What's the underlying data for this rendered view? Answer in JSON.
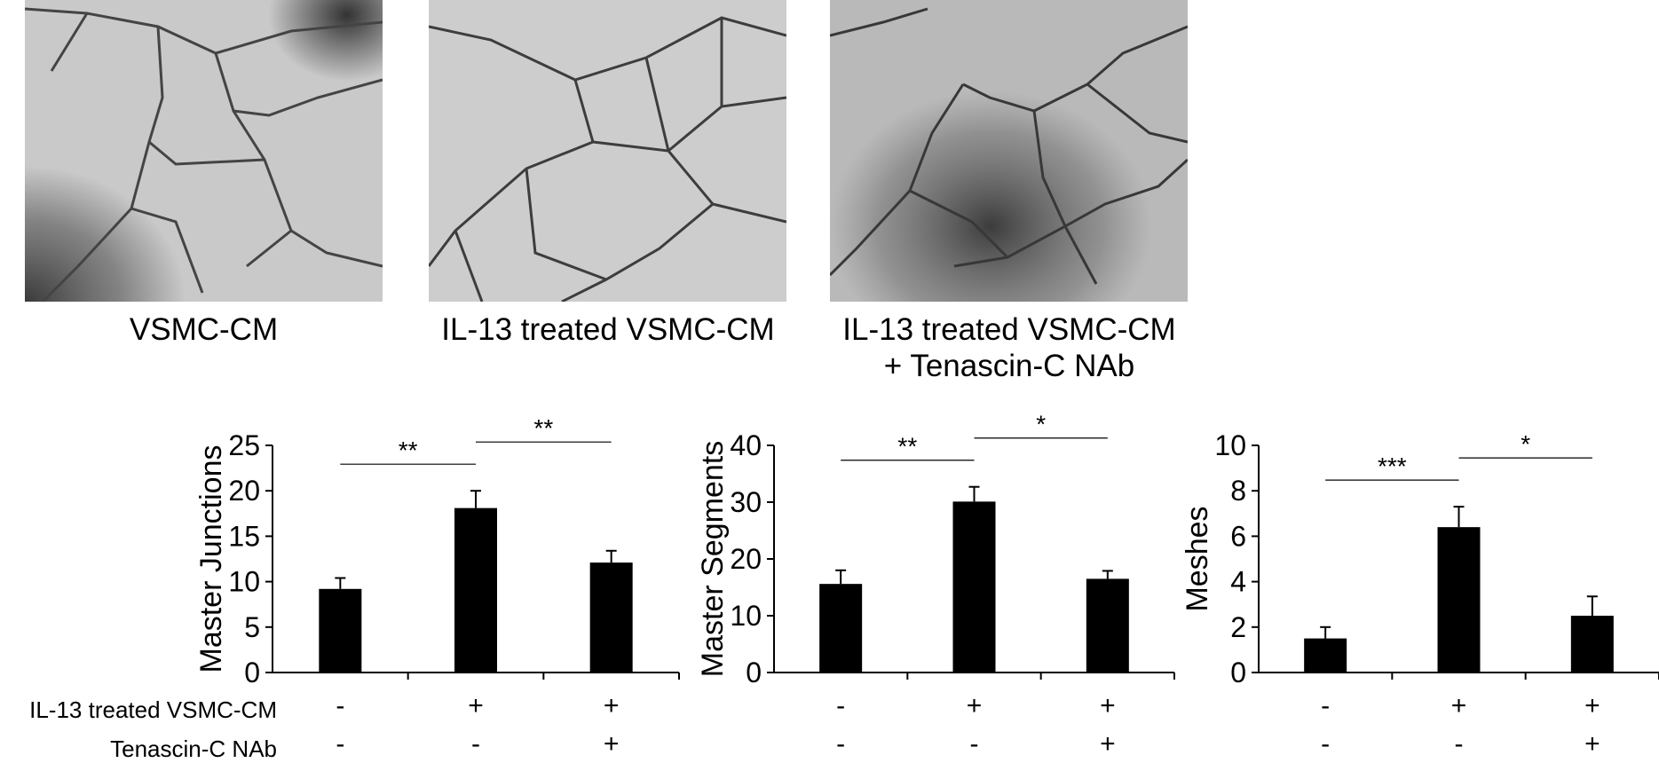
{
  "micrographs": [
    {
      "caption_lines": [
        "VSMC-CM"
      ]
    },
    {
      "caption_lines": [
        "IL-13 treated VSMC-CM"
      ]
    },
    {
      "caption_lines": [
        "IL-13 treated VSMC-CM",
        "+ Tenascin-C NAb"
      ]
    }
  ],
  "conditions": {
    "row1_label": "IL-13 treated VSMC-CM",
    "row2_label": "Tenascin-C NAb",
    "row1_signs": [
      "-",
      "+",
      "+"
    ],
    "row2_signs": [
      "-",
      "-",
      "+"
    ]
  },
  "colors": {
    "bar": "#000000",
    "axis": "#000000",
    "micrograph_bg": "#c8c8c8",
    "vessel": "#3a3a3a"
  },
  "chart_data": [
    {
      "type": "bar",
      "ylabel": "Master Junctions",
      "ylim": [
        0,
        25
      ],
      "yticks": [
        0,
        5,
        10,
        15,
        20,
        25
      ],
      "values": [
        9.2,
        18.1,
        12.1
      ],
      "errors": [
        1.2,
        1.9,
        1.3
      ],
      "significance": [
        {
          "from": 0,
          "to": 1,
          "label": "**"
        },
        {
          "from": 1,
          "to": 2,
          "label": "**"
        }
      ]
    },
    {
      "type": "bar",
      "ylabel": "Master Segments",
      "ylim": [
        0,
        40
      ],
      "yticks": [
        0,
        10,
        20,
        30,
        40
      ],
      "values": [
        15.6,
        30.1,
        16.5
      ],
      "errors": [
        2.4,
        2.6,
        1.4
      ],
      "significance": [
        {
          "from": 0,
          "to": 1,
          "label": "**"
        },
        {
          "from": 1,
          "to": 2,
          "label": "*"
        }
      ]
    },
    {
      "type": "bar",
      "ylabel": "Meshes",
      "ylim": [
        0,
        10
      ],
      "yticks": [
        0,
        2,
        4,
        6,
        8,
        10
      ],
      "values": [
        1.5,
        6.4,
        2.5
      ],
      "errors": [
        0.5,
        0.9,
        0.85
      ],
      "significance": [
        {
          "from": 0,
          "to": 1,
          "label": "***"
        },
        {
          "from": 1,
          "to": 2,
          "label": "*"
        }
      ]
    }
  ]
}
